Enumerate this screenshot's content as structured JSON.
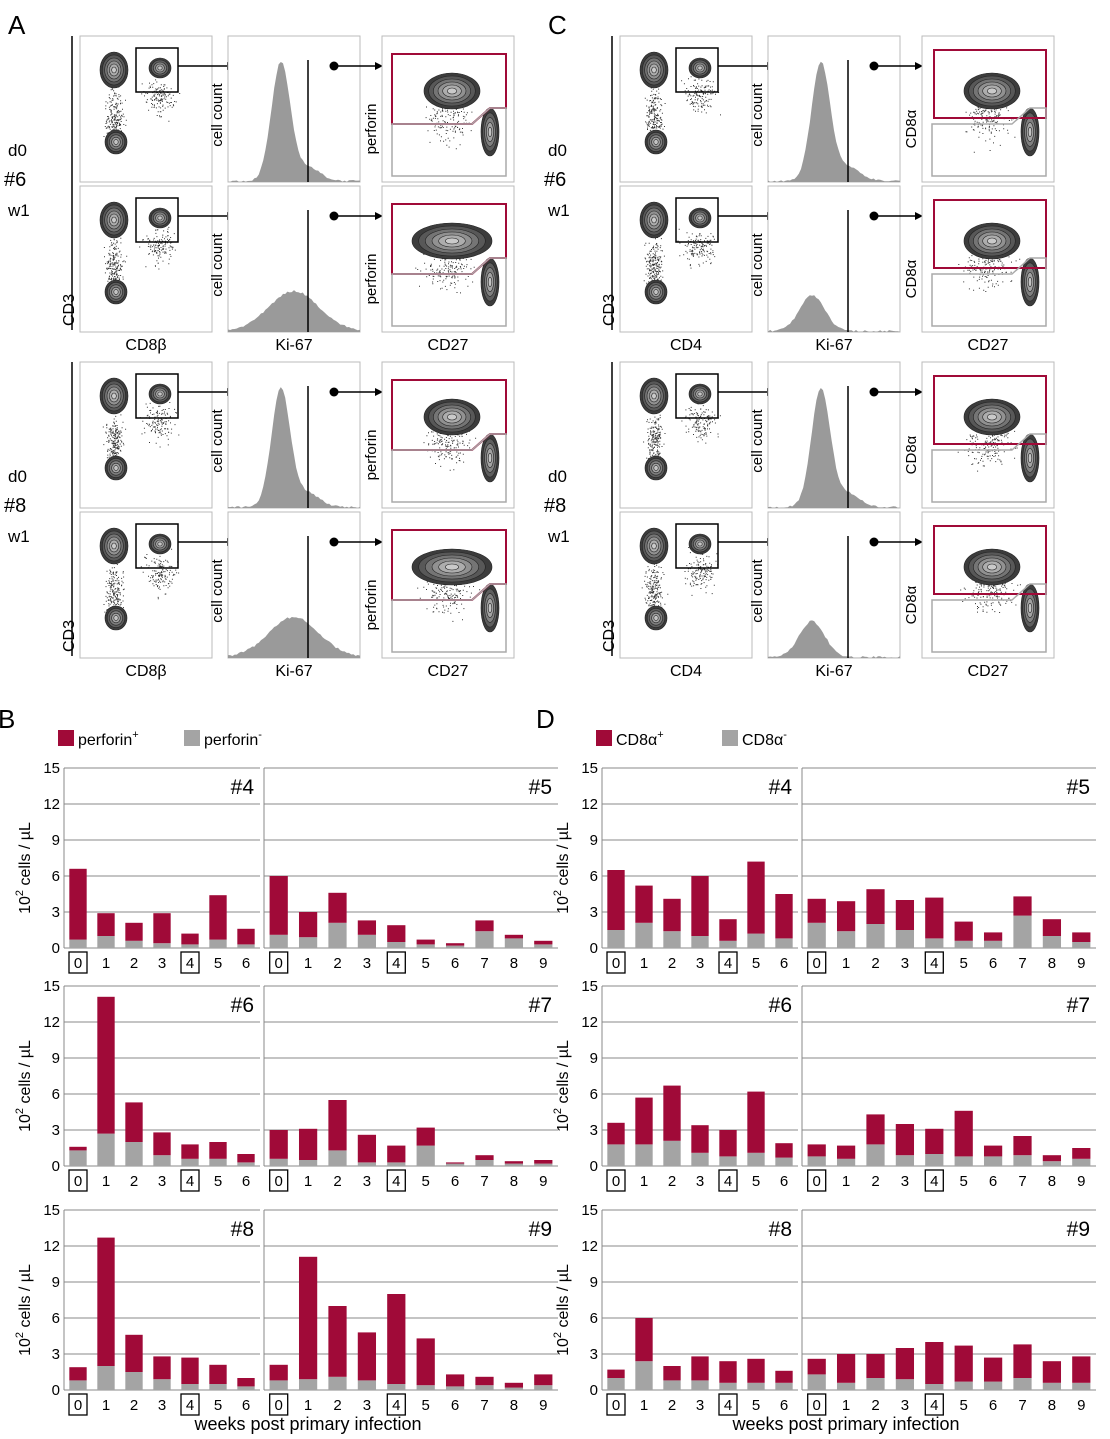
{
  "panels": {
    "A": {
      "label": "A",
      "rows": [
        {
          "day": "d0",
          "animal": "#6"
        },
        {
          "day": "w1",
          "animal": ""
        },
        {
          "day": "d0",
          "animal": "#8"
        },
        {
          "day": "w1",
          "animal": ""
        }
      ],
      "dot_y": "CD3",
      "dot_x": "CD8β",
      "hist_y": "cell count",
      "hist_x": "Ki-67",
      "gate_y": "perforin",
      "gate_x": "CD27"
    },
    "C": {
      "label": "C",
      "rows": [
        {
          "day": "d0",
          "animal": "#6"
        },
        {
          "day": "w1",
          "animal": ""
        },
        {
          "day": "d0",
          "animal": "#8"
        },
        {
          "day": "w1",
          "animal": ""
        }
      ],
      "dot_y": "CD3",
      "dot_x": "CD4",
      "hist_y": "cell count",
      "hist_x": "Ki-67",
      "gate_y": "CD8α",
      "gate_x": "CD27"
    },
    "B": {
      "label": "B",
      "legend": [
        {
          "base": "perforin",
          "sup": "+"
        },
        {
          "base": "perforin",
          "sup": "-"
        }
      ],
      "ylabel_base": "10",
      "ylabel_sup": "2",
      "ylabel_rest": " cells / µL",
      "xlabel": "weeks post primary infection"
    },
    "D": {
      "label": "D",
      "legend": [
        {
          "base": "CD8α",
          "sup": "+"
        },
        {
          "base": "CD8α",
          "sup": "-"
        }
      ],
      "ylabel_base": "10",
      "ylabel_sup": "2",
      "ylabel_rest": " cells / µL",
      "xlabel": "weeks post primary infection"
    }
  },
  "colors": {
    "positive": "#a00a38",
    "negative": "#a4a4a4",
    "gate": "#a00a38",
    "histogram": "#9a9a9a"
  },
  "chart_data": [
    {
      "type": "bar",
      "panel": "B",
      "stacked": true,
      "ylim": [
        0,
        15
      ],
      "yticks": [
        0,
        3,
        6,
        9,
        12,
        15
      ],
      "boxed_weeks": [
        0,
        4
      ],
      "animals": [
        {
          "name": "#4",
          "categories": [
            0,
            1,
            2,
            3,
            4,
            5,
            6
          ],
          "series": [
            {
              "name": "perforin-",
              "values": [
                0.7,
                1.0,
                0.6,
                0.4,
                0.3,
                0.7,
                0.3
              ]
            },
            {
              "name": "perforin+",
              "values": [
                5.9,
                1.9,
                1.5,
                2.5,
                0.9,
                3.7,
                1.3
              ]
            }
          ]
        },
        {
          "name": "#5",
          "categories": [
            0,
            1,
            2,
            3,
            4,
            5,
            6,
            7,
            8,
            9
          ],
          "series": [
            {
              "name": "perforin-",
              "values": [
                1.1,
                0.9,
                2.1,
                1.1,
                0.5,
                0.3,
                0.2,
                1.4,
                0.8,
                0.3
              ]
            },
            {
              "name": "perforin+",
              "values": [
                4.9,
                2.1,
                2.5,
                1.2,
                1.4,
                0.4,
                0.2,
                0.9,
                0.3,
                0.3
              ]
            }
          ]
        },
        {
          "name": "#6",
          "categories": [
            0,
            1,
            2,
            3,
            4,
            5,
            6
          ],
          "series": [
            {
              "name": "perforin-",
              "values": [
                1.3,
                2.7,
                2.0,
                0.9,
                0.6,
                0.6,
                0.3
              ]
            },
            {
              "name": "perforin+",
              "values": [
                0.3,
                11.4,
                3.3,
                1.9,
                1.2,
                1.4,
                0.7
              ]
            }
          ]
        },
        {
          "name": "#7",
          "categories": [
            0,
            1,
            2,
            3,
            4,
            5,
            6,
            7,
            8,
            9
          ],
          "series": [
            {
              "name": "perforin-",
              "values": [
                0.6,
                0.5,
                1.3,
                0.3,
                0.3,
                1.7,
                0.2,
                0.5,
                0.2,
                0.2
              ]
            },
            {
              "name": "perforin+",
              "values": [
                2.4,
                2.6,
                4.2,
                2.3,
                1.4,
                1.5,
                0.1,
                0.4,
                0.2,
                0.3
              ]
            }
          ]
        },
        {
          "name": "#8",
          "categories": [
            0,
            1,
            2,
            3,
            4,
            5,
            6
          ],
          "series": [
            {
              "name": "perforin-",
              "values": [
                0.8,
                2.0,
                1.5,
                0.9,
                0.5,
                0.5,
                0.3
              ]
            },
            {
              "name": "perforin+",
              "values": [
                1.1,
                10.7,
                3.1,
                1.9,
                2.2,
                1.6,
                0.7
              ]
            }
          ]
        },
        {
          "name": "#9",
          "categories": [
            0,
            1,
            2,
            3,
            4,
            5,
            6,
            7,
            8,
            9
          ],
          "series": [
            {
              "name": "perforin-",
              "values": [
                0.8,
                0.9,
                1.1,
                0.8,
                0.5,
                0.4,
                0.3,
                0.4,
                0.2,
                0.4
              ]
            },
            {
              "name": "perforin+",
              "values": [
                1.3,
                10.2,
                5.9,
                4.0,
                7.5,
                3.9,
                1.0,
                0.7,
                0.4,
                0.9
              ]
            }
          ]
        }
      ]
    },
    {
      "type": "bar",
      "panel": "D",
      "stacked": true,
      "ylim": [
        0,
        15
      ],
      "yticks": [
        0,
        3,
        6,
        9,
        12,
        15
      ],
      "boxed_weeks": [
        0,
        4
      ],
      "animals": [
        {
          "name": "#4",
          "categories": [
            0,
            1,
            2,
            3,
            4,
            5,
            6
          ],
          "series": [
            {
              "name": "CD8α-",
              "values": [
                1.5,
                2.1,
                1.4,
                1.0,
                0.6,
                1.2,
                0.8
              ]
            },
            {
              "name": "CD8α+",
              "values": [
                5.0,
                3.1,
                2.7,
                5.0,
                1.8,
                6.0,
                3.7
              ]
            }
          ]
        },
        {
          "name": "#5",
          "categories": [
            0,
            1,
            2,
            3,
            4,
            5,
            6,
            7,
            8,
            9
          ],
          "series": [
            {
              "name": "CD8α-",
              "values": [
                2.1,
                1.4,
                2.0,
                1.5,
                0.8,
                0.6,
                0.6,
                2.7,
                1.0,
                0.5
              ]
            },
            {
              "name": "CD8α+",
              "values": [
                2.0,
                2.5,
                2.9,
                2.5,
                3.4,
                1.6,
                0.7,
                1.6,
                1.4,
                0.8
              ]
            }
          ]
        },
        {
          "name": "#6",
          "categories": [
            0,
            1,
            2,
            3,
            4,
            5,
            6
          ],
          "series": [
            {
              "name": "CD8α-",
              "values": [
                1.8,
                1.8,
                2.1,
                1.1,
                0.8,
                1.1,
                0.7
              ]
            },
            {
              "name": "CD8α+",
              "values": [
                1.8,
                3.9,
                4.6,
                2.3,
                2.2,
                5.1,
                1.2
              ]
            }
          ]
        },
        {
          "name": "#7",
          "categories": [
            0,
            1,
            2,
            3,
            4,
            5,
            6,
            7,
            8,
            9
          ],
          "series": [
            {
              "name": "CD8α-",
              "values": [
                0.8,
                0.6,
                1.8,
                0.9,
                1.0,
                0.8,
                0.8,
                0.9,
                0.4,
                0.6
              ]
            },
            {
              "name": "CD8α+",
              "values": [
                1.0,
                1.1,
                2.5,
                2.6,
                2.1,
                3.8,
                0.9,
                1.6,
                0.5,
                0.9
              ]
            }
          ]
        },
        {
          "name": "#8",
          "categories": [
            0,
            1,
            2,
            3,
            4,
            5,
            6
          ],
          "series": [
            {
              "name": "CD8α-",
              "values": [
                1.0,
                2.4,
                0.8,
                0.8,
                0.6,
                0.6,
                0.6
              ]
            },
            {
              "name": "CD8α+",
              "values": [
                0.7,
                3.6,
                1.2,
                2.0,
                1.8,
                2.0,
                1.0
              ]
            }
          ]
        },
        {
          "name": "#9",
          "categories": [
            0,
            1,
            2,
            3,
            4,
            5,
            6,
            7,
            8,
            9
          ],
          "series": [
            {
              "name": "CD8α-",
              "values": [
                1.3,
                0.6,
                1.0,
                0.9,
                0.5,
                0.7,
                0.7,
                1.0,
                0.6,
                0.6
              ]
            },
            {
              "name": "CD8α+",
              "values": [
                1.3,
                2.4,
                2.0,
                2.6,
                3.5,
                3.0,
                2.0,
                2.8,
                1.8,
                2.2
              ]
            }
          ]
        }
      ]
    }
  ]
}
